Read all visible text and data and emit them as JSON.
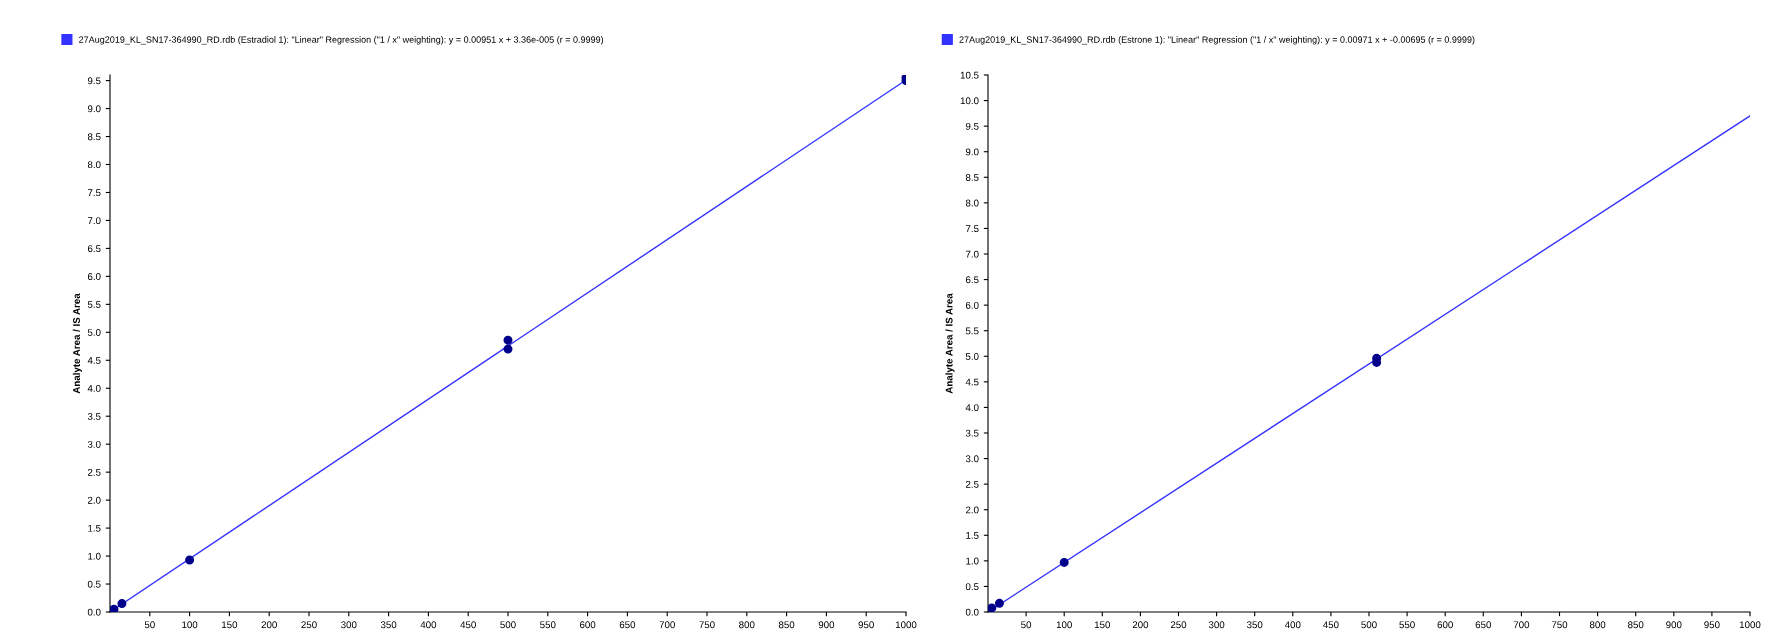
{
  "chart_data": [
    {
      "type": "scatter",
      "ylabel": "Analyte Area / IS Area",
      "legend": "top left",
      "marker": "circle",
      "grid": false,
      "series": [
        {
          "type": "line",
          "marker": "none",
          "name": "27Aug2019_KL_SN17-364990_RD.rdb (Estradiol 1): \"Linear\" Regression (\"1 / x\" weighting): y = 0.00951 x + 3.36e-005 (r = 0.9999)",
          "color": "#3333ff",
          "x": [
            0,
            1000
          ],
          "values": [
            0.0,
            9.51
          ]
        },
        {
          "color": "#00008b",
          "x": [
            5,
            15,
            100,
            500,
            500,
            1000,
            1000
          ],
          "values": [
            0.05,
            0.15,
            0.93,
            4.86,
            4.7,
            9.5,
            9.55
          ]
        }
      ],
      "xlim": [
        0,
        1000
      ],
      "xticks": [
        50,
        100,
        150,
        200,
        250,
        300,
        350,
        400,
        450,
        500,
        550,
        600,
        650,
        700,
        750,
        800,
        850,
        900,
        950,
        1000
      ],
      "ylim": [
        0,
        9.6
      ],
      "yticks": [
        {
          "value": 0,
          "label": "0.0"
        },
        {
          "value": 0.5,
          "label": "0.5"
        },
        {
          "value": 1,
          "label": "1.0"
        },
        {
          "value": 1.5,
          "label": "1.5"
        },
        {
          "value": 2,
          "label": "2.0"
        },
        {
          "value": 2.5,
          "label": "2.5"
        },
        {
          "value": 3,
          "label": "3.0"
        },
        {
          "value": 3.5,
          "label": "3.5"
        },
        {
          "value": 4,
          "label": "4.0"
        },
        {
          "value": 4.5,
          "label": "4.5"
        },
        {
          "value": 5,
          "label": "5.0"
        },
        {
          "value": 5.5,
          "label": "5.5"
        },
        {
          "value": 6,
          "label": "6.0"
        },
        {
          "value": 6.5,
          "label": "6.5"
        },
        {
          "value": 7,
          "label": "7.0"
        },
        {
          "value": 7.5,
          "label": "7.5"
        },
        {
          "value": 8,
          "label": "8.0"
        },
        {
          "value": 8.5,
          "label": "8.5"
        },
        {
          "value": 9,
          "label": "9.0"
        },
        {
          "value": 9.5,
          "label": "9.5"
        }
      ]
    },
    {
      "type": "scatter",
      "ylabel": "Analyte Area / IS Area",
      "legend": "top left",
      "marker": "circle",
      "grid": false,
      "series": [
        {
          "type": "line",
          "marker": "none",
          "name": "27Aug2019_KL_SN17-364990_RD.rdb (Estrone 1): \"Linear\" Regression (\"1 / x\" weighting): y = 0.00971 x + -0.00695 (r = 0.9999)",
          "color": "#3333ff",
          "x": [
            0,
            1000
          ],
          "values": [
            0.0,
            9.7
          ]
        },
        {
          "color": "#00008b",
          "x": [
            5,
            15,
            100,
            510,
            510
          ],
          "values": [
            0.08,
            0.17,
            0.97,
            4.96,
            4.88
          ]
        }
      ],
      "xlim": [
        0,
        1000
      ],
      "xticks": [
        50,
        100,
        150,
        200,
        250,
        300,
        350,
        400,
        450,
        500,
        550,
        600,
        650,
        700,
        750,
        800,
        850,
        900,
        950,
        1000
      ],
      "ylim": [
        0,
        10.5
      ],
      "yticks": [
        {
          "value": 0,
          "label": "0.0"
        },
        {
          "value": 0.5,
          "label": "0.5"
        },
        {
          "value": 1,
          "label": "1.0"
        },
        {
          "value": 1.5,
          "label": "1.5"
        },
        {
          "value": 2,
          "label": "2.0"
        },
        {
          "value": 2.5,
          "label": "2.5"
        },
        {
          "value": 3,
          "label": "3.0"
        },
        {
          "value": 3.5,
          "label": "3.5"
        },
        {
          "value": 4,
          "label": "4.0"
        },
        {
          "value": 4.5,
          "label": "4.5"
        },
        {
          "value": 5,
          "label": "5.0"
        },
        {
          "value": 5.5,
          "label": "5.5"
        },
        {
          "value": 6,
          "label": "6.0"
        },
        {
          "value": 6.5,
          "label": "6.5"
        },
        {
          "value": 7,
          "label": "7.0"
        },
        {
          "value": 7.5,
          "label": "7.5"
        },
        {
          "value": 8,
          "label": "8.0"
        },
        {
          "value": 8.5,
          "label": "8.5"
        },
        {
          "value": 9,
          "label": "9.0"
        },
        {
          "value": 9.5,
          "label": "9.5"
        },
        {
          "value": 10,
          "label": "10.0"
        },
        {
          "value": 10.5,
          "label": "10.5"
        }
      ]
    }
  ]
}
